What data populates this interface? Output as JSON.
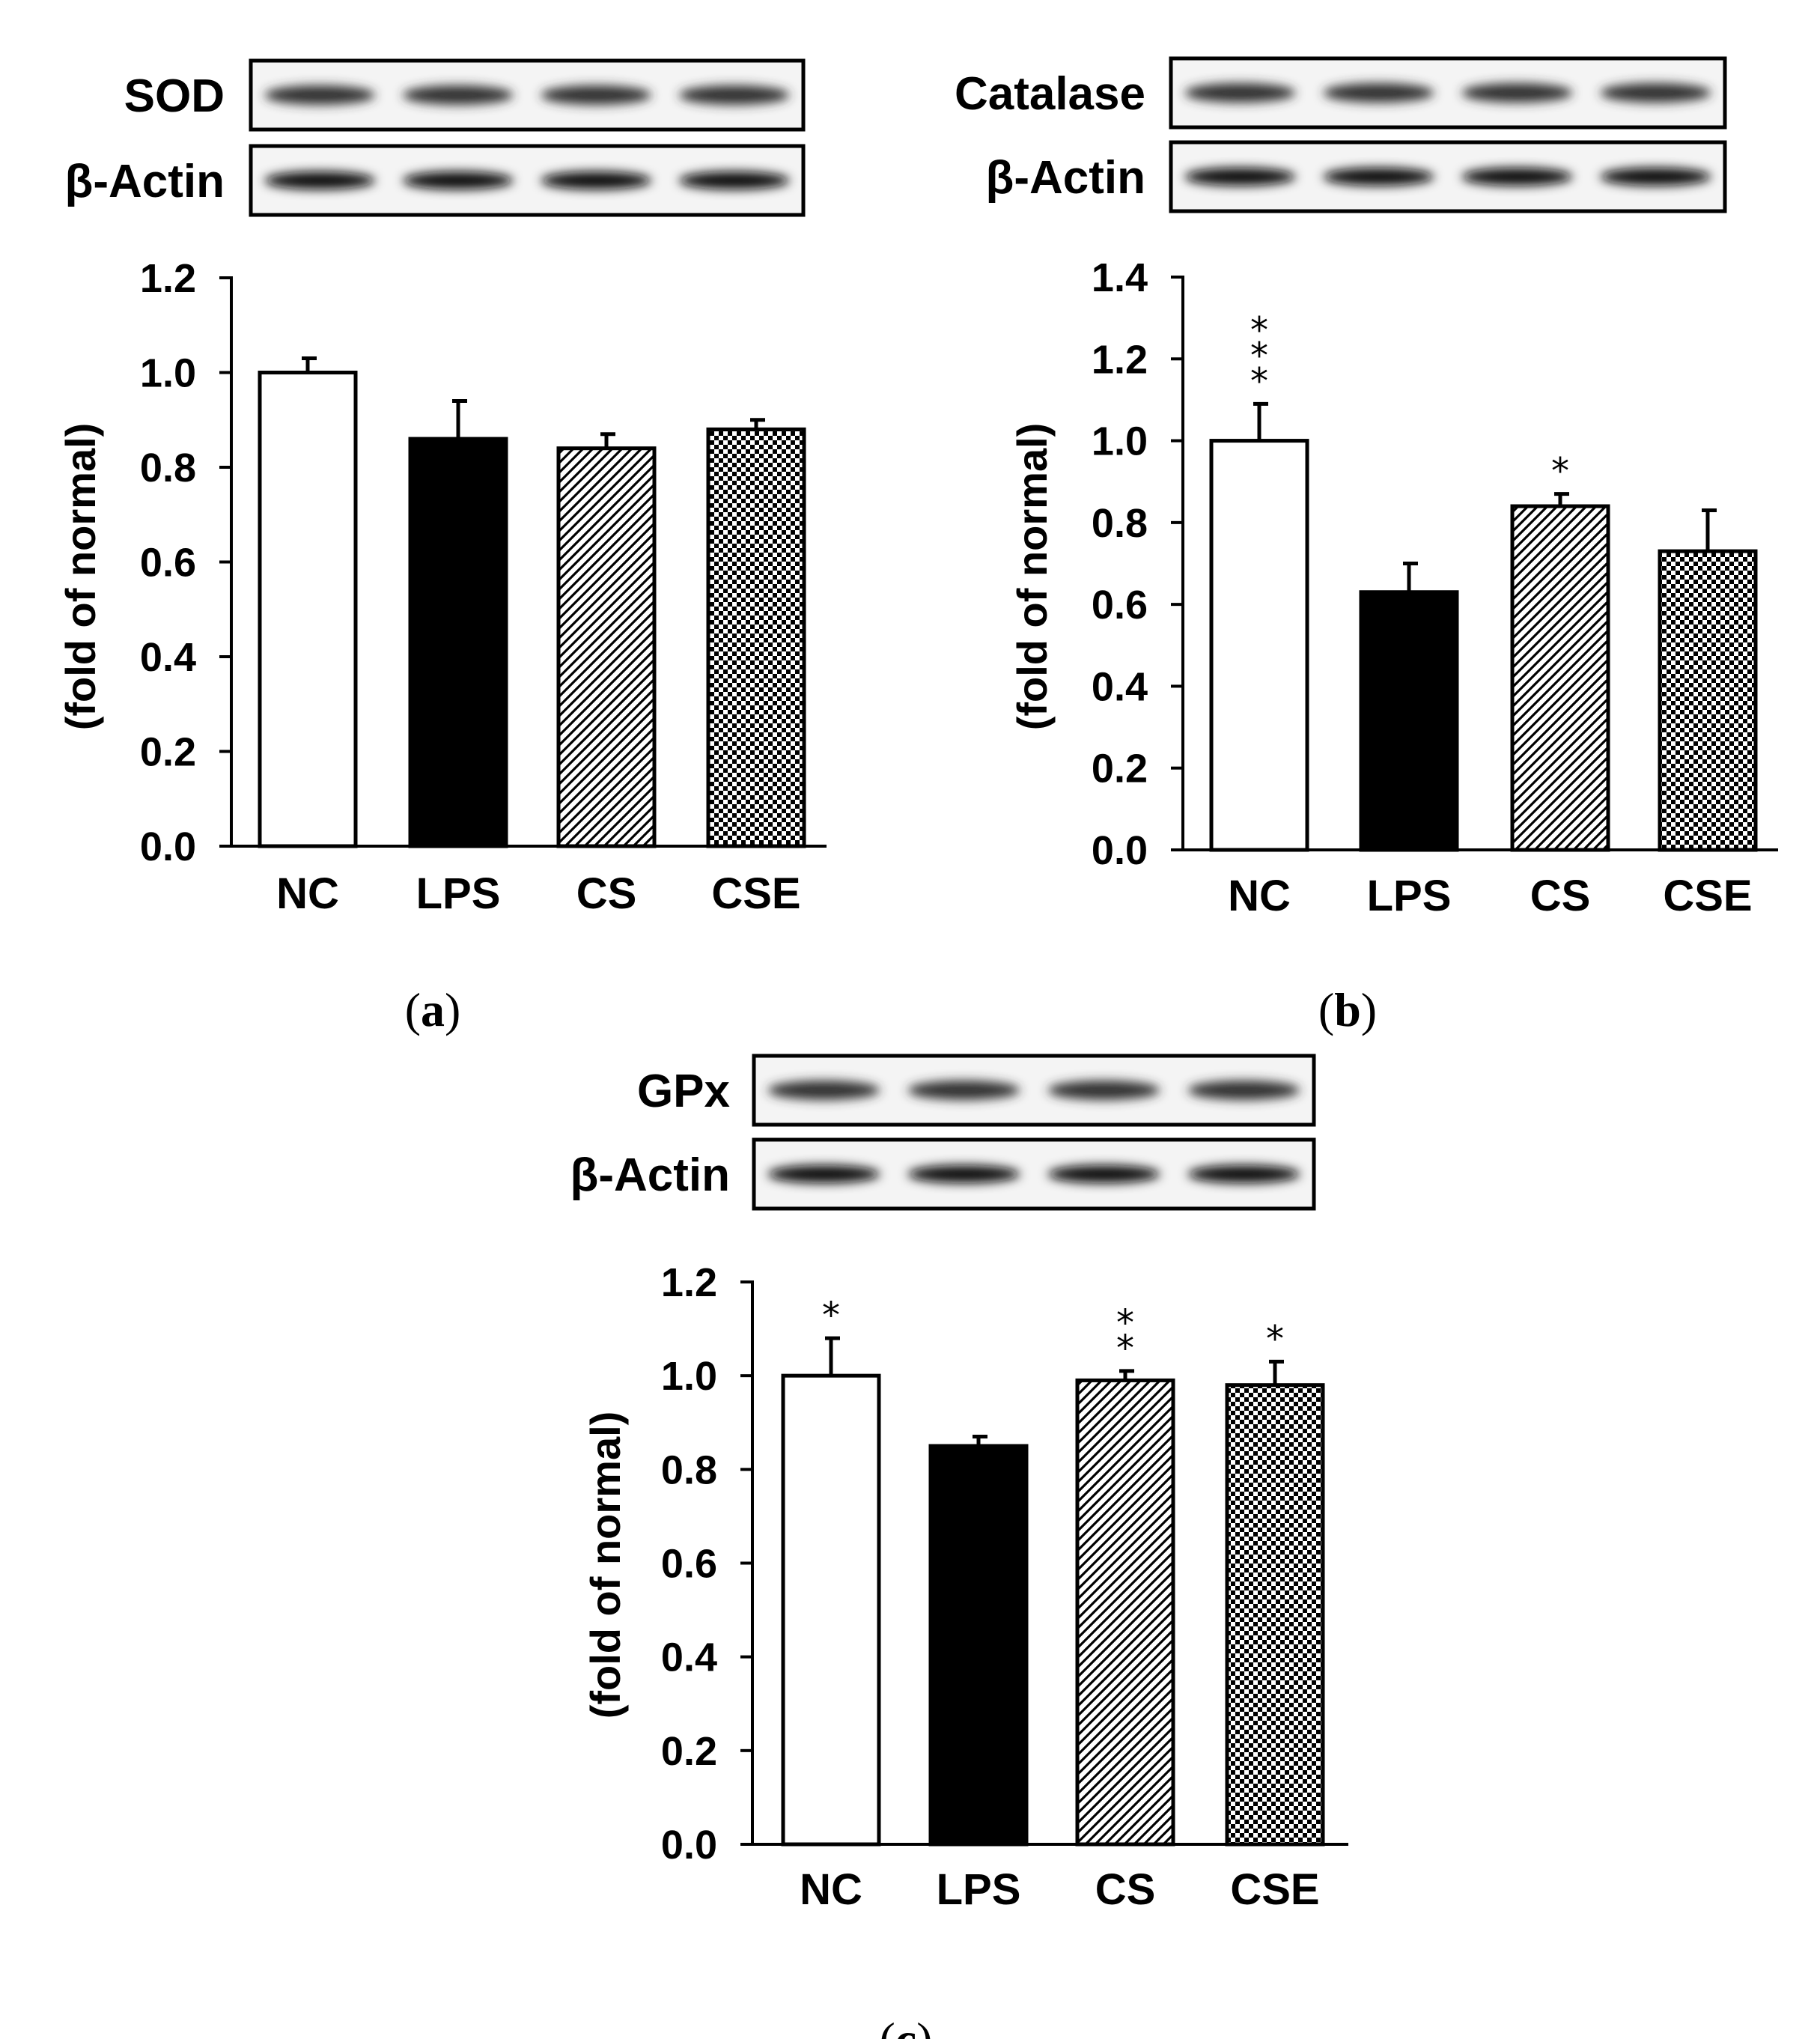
{
  "chart_data": [
    {
      "type": "bar",
      "panel": "a",
      "caption": {
        "open": "(",
        "letter": "a",
        "close": ")"
      },
      "blot_labels": [
        "SOD",
        "β-Actin"
      ],
      "categories": [
        "NC",
        "LPS",
        "CS",
        "CSE"
      ],
      "values": [
        1.0,
        0.86,
        0.84,
        0.88
      ],
      "errors": [
        0.03,
        0.08,
        0.03,
        0.02
      ],
      "significance": [
        "",
        "",
        "",
        ""
      ],
      "bar_styles": [
        "white",
        "black",
        "diagonal",
        "checker"
      ],
      "ylabel": "(fold of normal)",
      "ylim": [
        0,
        1.2
      ],
      "yticks": [
        "0.0",
        "0.2",
        "0.4",
        "0.6",
        "0.8",
        "1.0",
        "1.2"
      ]
    },
    {
      "type": "bar",
      "panel": "b",
      "caption": {
        "open": "(",
        "letter": "b",
        "close": ")"
      },
      "blot_labels": [
        "Catalase",
        "β-Actin"
      ],
      "categories": [
        "NC",
        "LPS",
        "CS",
        "CSE"
      ],
      "values": [
        1.0,
        0.63,
        0.84,
        0.73
      ],
      "errors": [
        0.09,
        0.07,
        0.03,
        0.1
      ],
      "significance": [
        "***",
        "",
        "*",
        ""
      ],
      "bar_styles": [
        "white",
        "black",
        "diagonal",
        "checker"
      ],
      "ylabel": "(fold of normal)",
      "ylim": [
        0,
        1.4
      ],
      "yticks": [
        "0.0",
        "0.2",
        "0.4",
        "0.6",
        "0.8",
        "1.0",
        "1.2",
        "1.4"
      ]
    },
    {
      "type": "bar",
      "panel": "c",
      "caption": {
        "open": "(",
        "letter": "c",
        "close": ")"
      },
      "blot_labels": [
        "GPx",
        "β-Actin"
      ],
      "categories": [
        "NC",
        "LPS",
        "CS",
        "CSE"
      ],
      "values": [
        1.0,
        0.85,
        0.99,
        0.98
      ],
      "errors": [
        0.08,
        0.02,
        0.02,
        0.05
      ],
      "significance": [
        "*",
        "",
        "**",
        "*"
      ],
      "bar_styles": [
        "white",
        "black",
        "diagonal",
        "checker"
      ],
      "ylabel": "(fold of normal)",
      "ylim": [
        0,
        1.2
      ],
      "yticks": [
        "0.0",
        "0.2",
        "0.4",
        "0.6",
        "0.8",
        "1.0",
        "1.2"
      ]
    }
  ]
}
